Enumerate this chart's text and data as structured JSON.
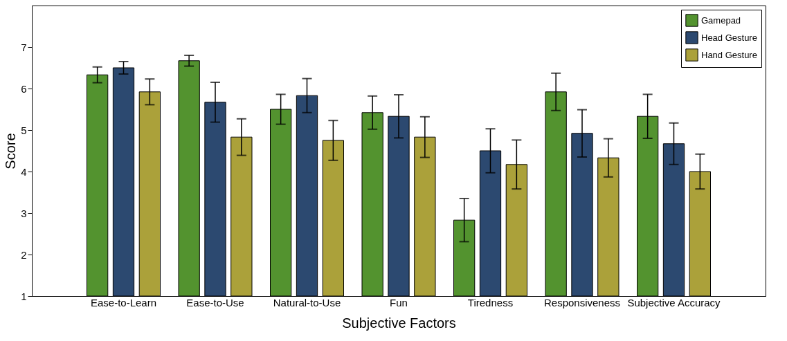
{
  "chart_data": {
    "type": "bar",
    "xlabel": "Subjective Factors",
    "ylabel": "Score",
    "categories": [
      "Ease-to-Learn",
      "Ease-to-Use",
      "Natural-to-Use",
      "Fun",
      "Tiredness",
      "Responsiveness",
      "Subjective Accuracy"
    ],
    "series": [
      {
        "name": "Gamepad",
        "color": "#53932f",
        "values": [
          6.33,
          6.67,
          5.5,
          5.42,
          2.83,
          5.92,
          5.33
        ],
        "errors": [
          0.19,
          0.13,
          0.36,
          0.4,
          0.52,
          0.45,
          0.53
        ]
      },
      {
        "name": "Head Gesture",
        "color": "#2c4970",
        "values": [
          6.5,
          5.67,
          5.83,
          5.33,
          4.5,
          4.92,
          4.67
        ],
        "errors": [
          0.15,
          0.48,
          0.41,
          0.52,
          0.53,
          0.57,
          0.5
        ]
      },
      {
        "name": "Hand Gesture",
        "color": "#aba13a",
        "values": [
          5.92,
          4.83,
          4.75,
          4.83,
          4.17,
          4.33,
          4.0
        ],
        "errors": [
          0.31,
          0.44,
          0.48,
          0.49,
          0.59,
          0.46,
          0.42
        ]
      }
    ],
    "ylim": [
      1,
      8
    ],
    "yticks": [
      1,
      2,
      3,
      4,
      5,
      6,
      7
    ],
    "grid": false,
    "legend": "top right"
  }
}
